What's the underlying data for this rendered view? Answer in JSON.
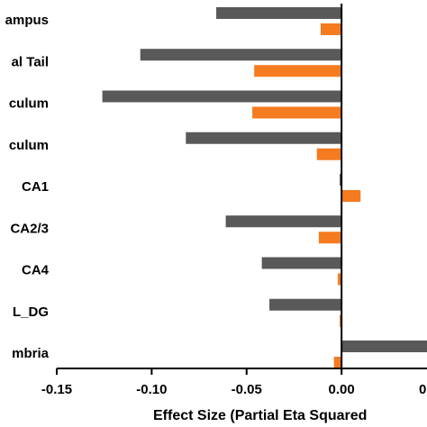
{
  "chart_data": {
    "type": "bar",
    "orientation": "horizontal",
    "categories": [
      "Hippocampus",
      "Hippocampal Tail",
      "Presubiculum",
      "Subiculum",
      "CA1",
      "CA2/3",
      "CA4",
      "GC-ML_DG",
      "Fimbria"
    ],
    "category_labels_visible": [
      "ampus",
      "al Tail",
      "culum",
      "culum",
      "CA1",
      "CA2/3",
      "CA4",
      "L_DG",
      "mbria"
    ],
    "series": [
      {
        "color": "#595959",
        "values": [
          -0.066,
          -0.106,
          -0.126,
          -0.082,
          -0.001,
          -0.061,
          -0.042,
          -0.038,
          0.045
        ]
      },
      {
        "color": "#f47b20",
        "values": [
          -0.011,
          -0.046,
          -0.047,
          -0.013,
          0.01,
          -0.012,
          -0.002,
          -0.001,
          -0.004
        ]
      }
    ],
    "xlabel": "Effect Size (Partial Eta Squared)",
    "xlabel_visible": "Effect Size (Partial Eta Squared",
    "xlim": [
      -0.15,
      0.045
    ],
    "xticks": [
      -0.15,
      -0.1,
      -0.05,
      0.0
    ],
    "xtick_labels": [
      "-0.15",
      "-0.10",
      "-0.05",
      "0.00"
    ],
    "partial_tick_label": "0",
    "grid": false,
    "legend": "none"
  }
}
